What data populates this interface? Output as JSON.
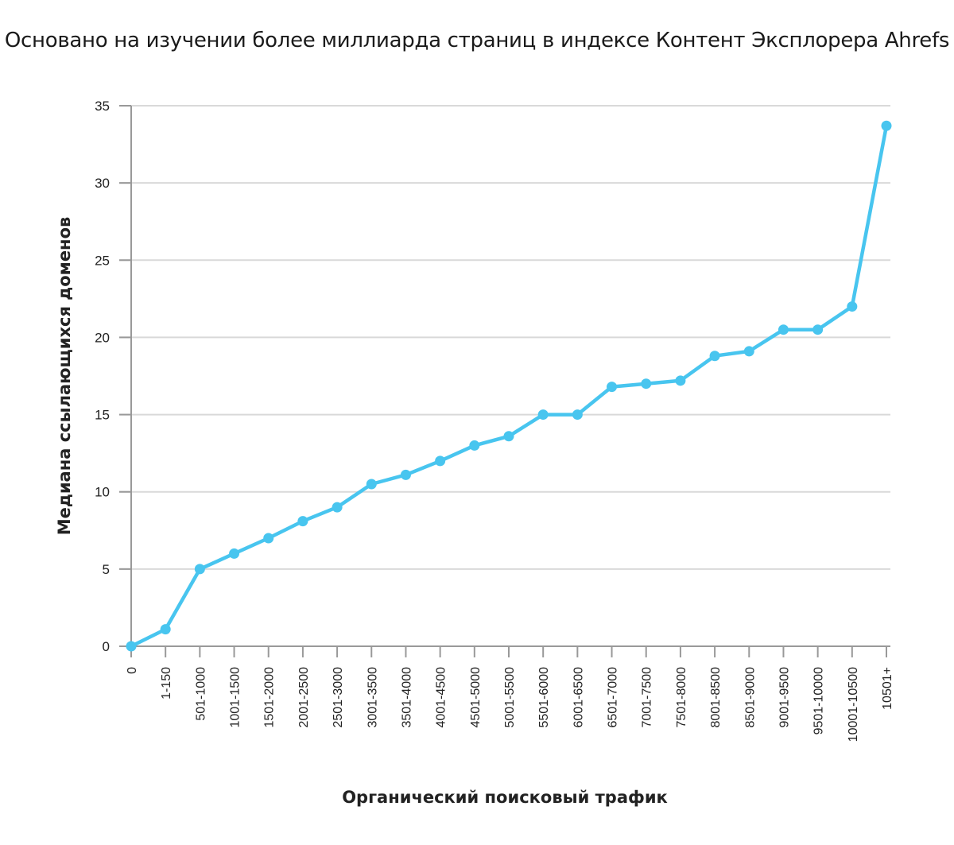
{
  "chart_data": {
    "type": "line",
    "title": "Основано на изучении более миллиарда страниц в индексе Контент Эксплорера Ahrefs",
    "xlabel": "Органический поисковый трафик",
    "ylabel": "Медиана ссылающихся доменов",
    "ylim": [
      0,
      35
    ],
    "yticks": [
      "0",
      "5",
      "10",
      "15",
      "20",
      "25",
      "30",
      "35"
    ],
    "grid": true,
    "color": "#48c5ef",
    "categories": [
      "0",
      "1-150",
      "501-1000",
      "1001-1500",
      "1501-2000",
      "2001-2500",
      "2501-3000",
      "3001-3500",
      "3501-4000",
      "4001-4500",
      "4501-5000",
      "5001-5500",
      "5501-6000",
      "6001-6500",
      "6501-7000",
      "7001-7500",
      "7501-8000",
      "8001-8500",
      "8501-9000",
      "9001-9500",
      "9501-10000",
      "10001-10500",
      "10501+"
    ],
    "values": [
      0,
      1.1,
      5,
      6,
      7,
      8.1,
      9,
      10.5,
      11.1,
      12,
      13,
      13.6,
      15,
      15,
      16.8,
      17,
      17.2,
      18.8,
      19.1,
      20.5,
      20.5,
      22,
      33.7
    ]
  }
}
